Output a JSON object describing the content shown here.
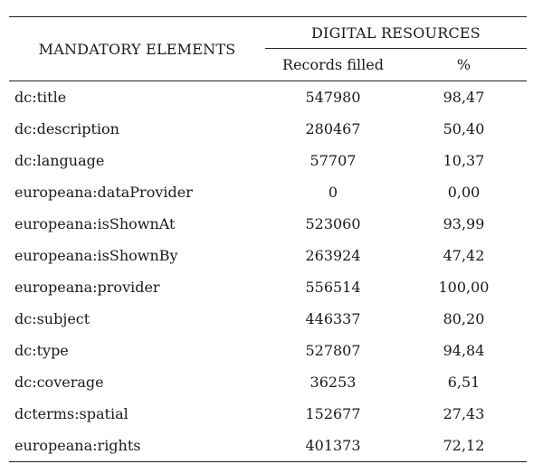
{
  "table": {
    "header": {
      "mandatory": "MANDATORY ELEMENTS",
      "group": "DIGITAL RESOURCES",
      "records": "Records filled",
      "percent": "%"
    },
    "rows": [
      {
        "element": "dc:title",
        "records": "547980",
        "percent": "98,47"
      },
      {
        "element": "dc:description",
        "records": "280467",
        "percent": "50,40"
      },
      {
        "element": "dc:language",
        "records": "57707",
        "percent": "10,37"
      },
      {
        "element": "europeana:dataProvider",
        "records": "0",
        "percent": "0,00"
      },
      {
        "element": "europeana:isShownAt",
        "records": "523060",
        "percent": "93,99"
      },
      {
        "element": "europeana:isShownBy",
        "records": "263924",
        "percent": "47,42"
      },
      {
        "element": "europeana:provider",
        "records": "556514",
        "percent": "100,00"
      },
      {
        "element": "dc:subject",
        "records": "446337",
        "percent": "80,20"
      },
      {
        "element": "dc:type",
        "records": "527807",
        "percent": "94,84"
      },
      {
        "element": "dc:coverage",
        "records": "36253",
        "percent": "6,51"
      },
      {
        "element": "dcterms:spatial",
        "records": "152677",
        "percent": "27,43"
      },
      {
        "element": "europeana:rights",
        "records": "401373",
        "percent": "72,12"
      }
    ]
  }
}
